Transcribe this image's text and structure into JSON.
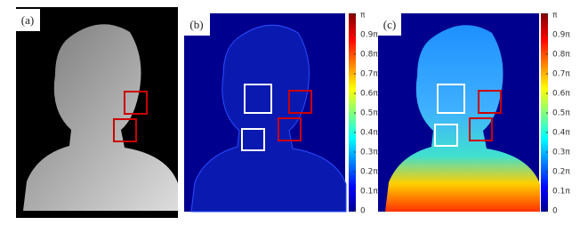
{
  "panels": [
    {
      "label": "(a)"
    },
    {
      "label": "(b)",
      "colorbar": [
        "π",
        "0.9π",
        "0.8π",
        "0.7π",
        "0.6π",
        "0.5π",
        "0.4π",
        "0.3π",
        "0.2π",
        "0.1π",
        "0"
      ]
    },
    {
      "label": "(c)",
      "colorbar": [
        "π",
        "0.9π",
        "0.8π",
        "0.7π",
        "0.6π",
        "0.5π",
        "0.4π",
        "0.3π",
        "0.2π",
        "0.1π",
        "0"
      ]
    }
  ]
}
